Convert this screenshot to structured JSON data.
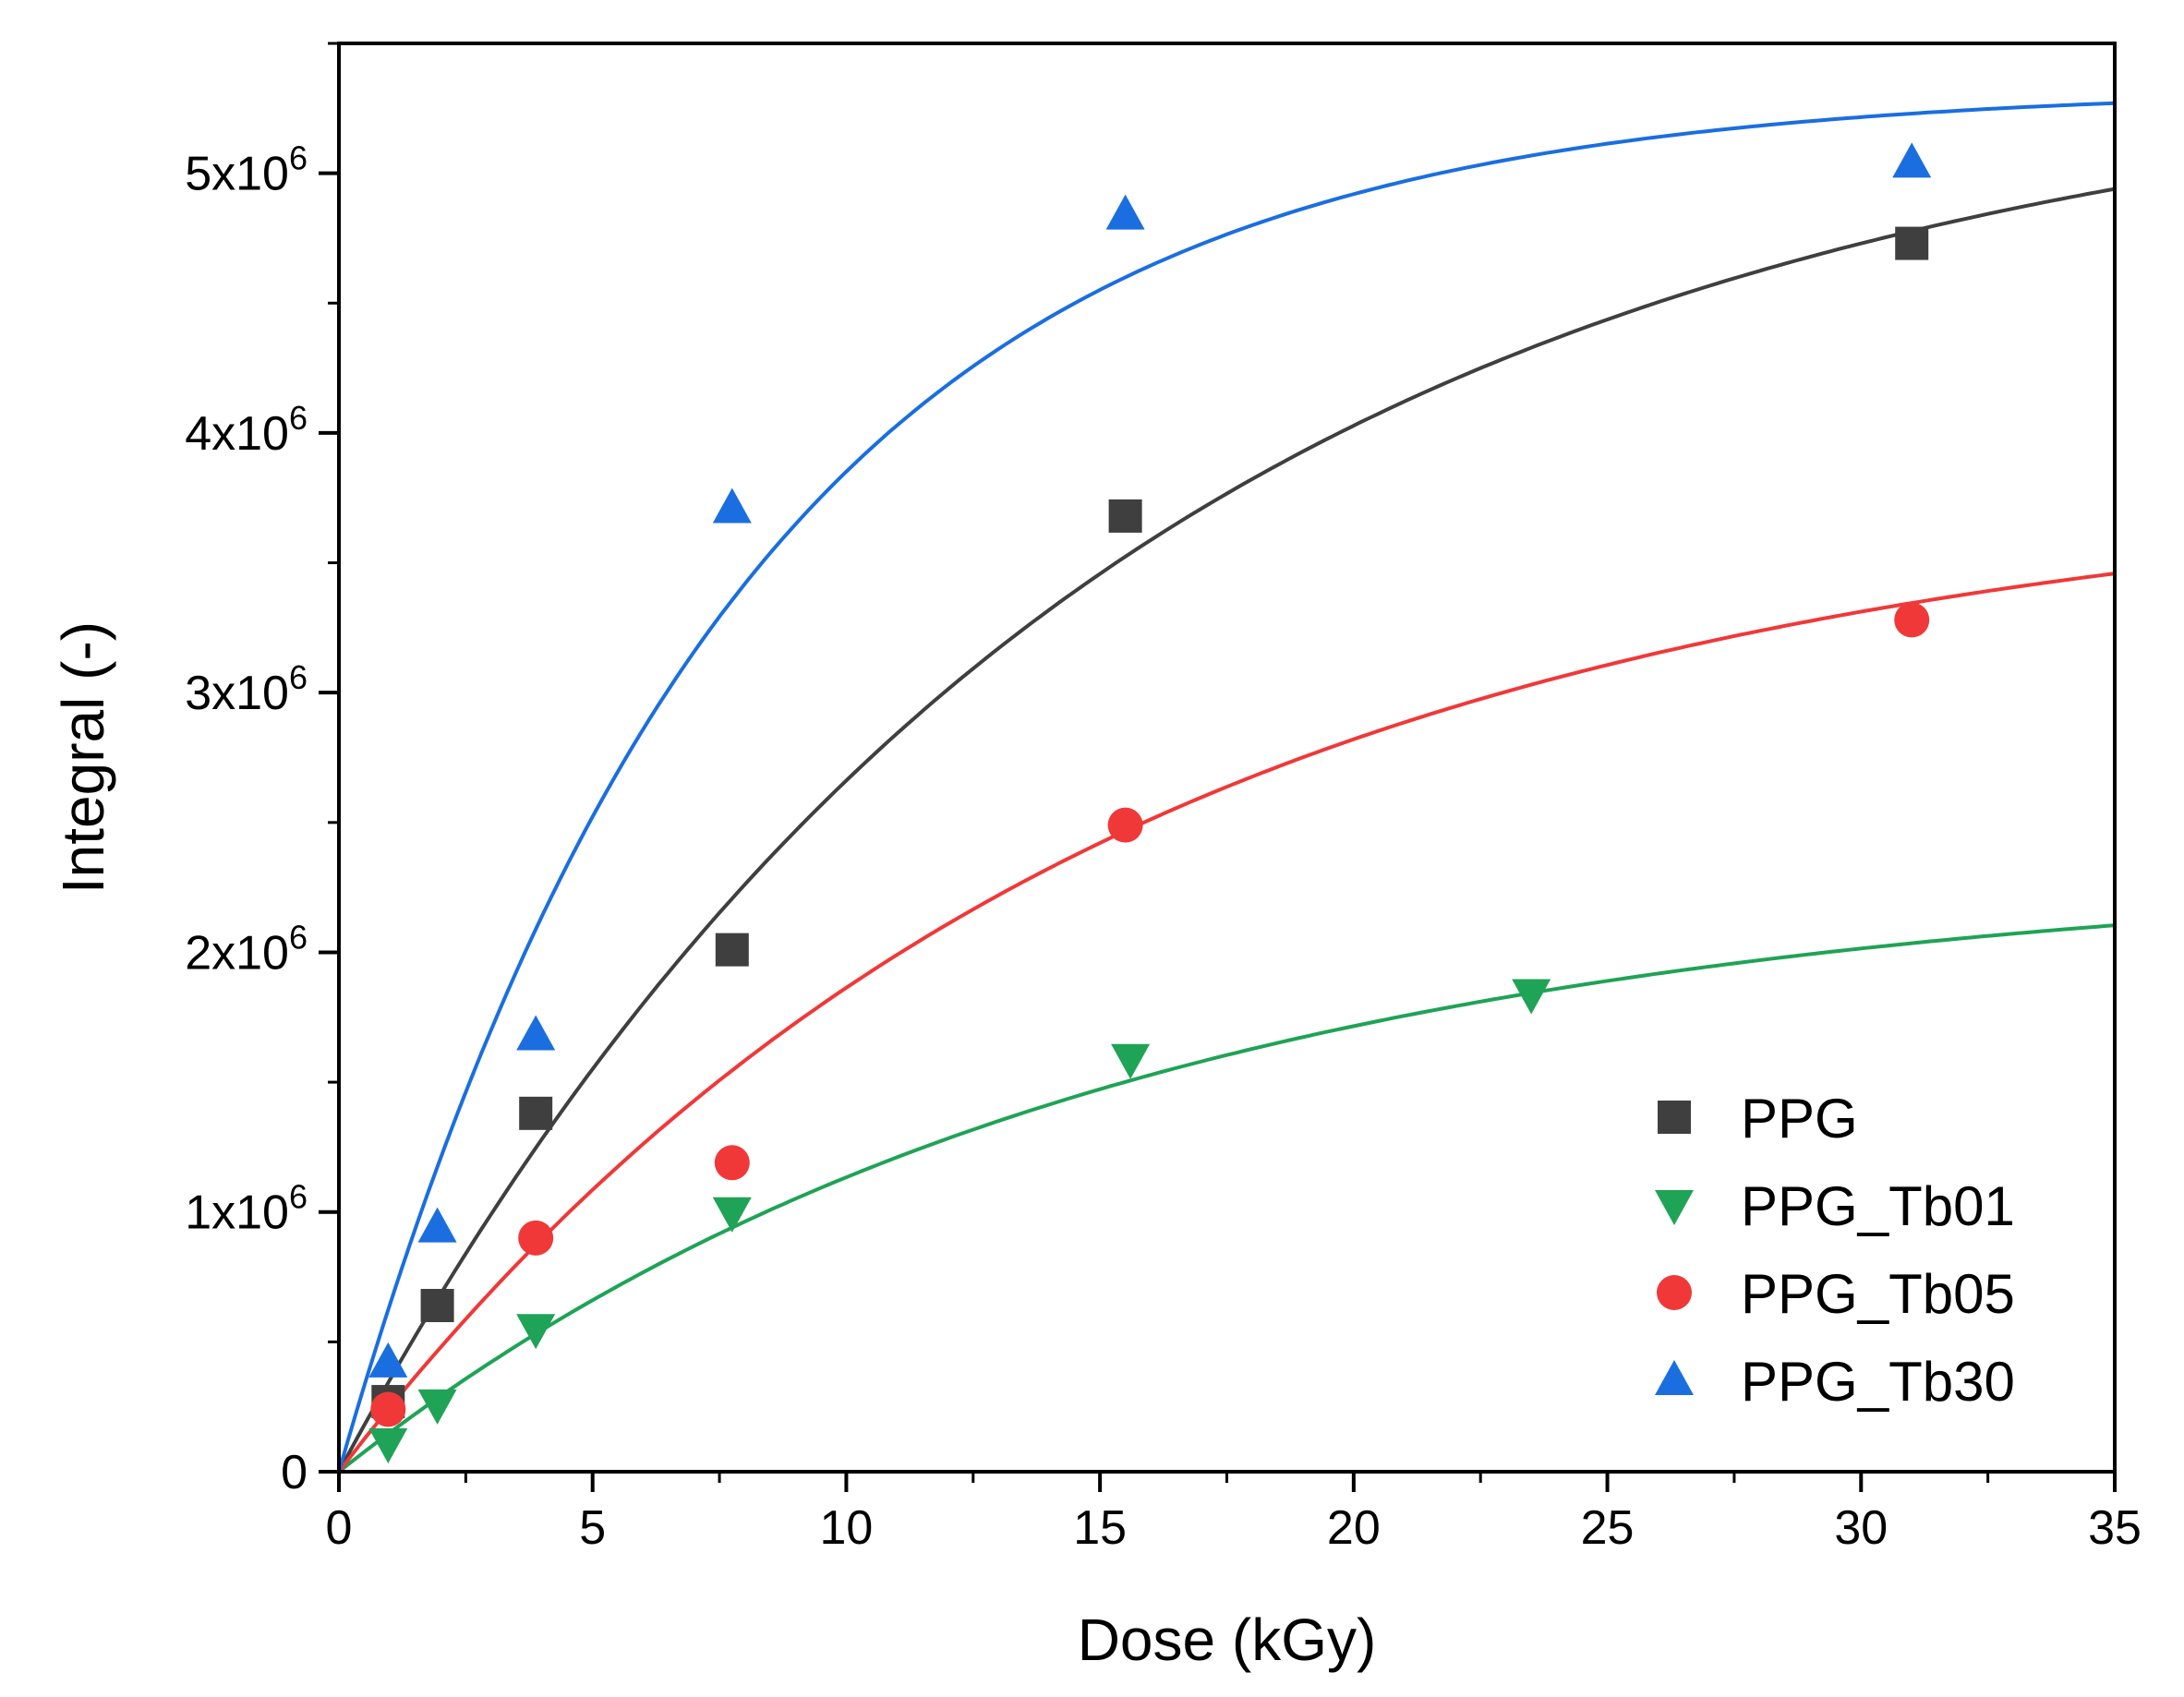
{
  "chart_data": {
    "type": "scatter",
    "title": "",
    "xlabel": "Dose (kGy)",
    "ylabel": "Integral (-)",
    "xlim": [
      0,
      35
    ],
    "ylim": [
      0,
      5500000
    ],
    "x_ticks": [
      0,
      5,
      10,
      15,
      20,
      25,
      30,
      35
    ],
    "x_tick_labels": [
      "0",
      "5",
      "10",
      "15",
      "20",
      "25",
      "30",
      "35"
    ],
    "y_ticks": [
      0,
      1000000,
      2000000,
      3000000,
      4000000,
      5000000
    ],
    "y_tick_labels": [
      {
        "value": 0,
        "base": "0",
        "exp": ""
      },
      {
        "value": 1000000,
        "base": "1x10",
        "exp": "6"
      },
      {
        "value": 2000000,
        "base": "2x10",
        "exp": "6"
      },
      {
        "value": 3000000,
        "base": "3x10",
        "exp": "6"
      },
      {
        "value": 4000000,
        "base": "4x10",
        "exp": "6"
      },
      {
        "value": 5000000,
        "base": "5x10",
        "exp": "6"
      }
    ],
    "grid": false,
    "legend_position": "bottom-right",
    "series": [
      {
        "name": "PPG",
        "marker": "square",
        "color": "#3f3f3f",
        "x": [
          0.97,
          1.94,
          3.88,
          7.75,
          15.5,
          31.0
        ],
        "y": [
          270000,
          640000,
          1380000,
          2010000,
          3680000,
          4730000
        ],
        "fit": {
          "a": 5470000,
          "b": 15.0
        }
      },
      {
        "name": "PPG_Tb01",
        "marker": "triangle-down",
        "color": "#1fa356",
        "x": [
          0.97,
          1.94,
          3.88,
          7.75,
          15.6,
          23.5
        ],
        "y": [
          110000,
          260000,
          550000,
          1000000,
          1590000,
          1840000
        ],
        "fit": {
          "a": 2330000,
          "b": 15.0
        }
      },
      {
        "name": "PPG_Tb05",
        "marker": "circle",
        "color": "#f03838",
        "x": [
          0.97,
          3.88,
          7.75,
          15.5,
          31.0
        ],
        "y": [
          240000,
          900000,
          1190000,
          2490000,
          3280000
        ],
        "fit": {
          "a": 3830000,
          "b": 15.0
        }
      },
      {
        "name": "PPG_Tb30",
        "marker": "triangle-up",
        "color": "#1a6ee0",
        "x": [
          0.97,
          1.94,
          3.88,
          7.75,
          15.5,
          31.0
        ],
        "y": [
          420000,
          940000,
          1680000,
          3710000,
          4840000,
          5040000
        ],
        "fit": {
          "a": 5330000,
          "b": 7.8
        }
      }
    ]
  }
}
